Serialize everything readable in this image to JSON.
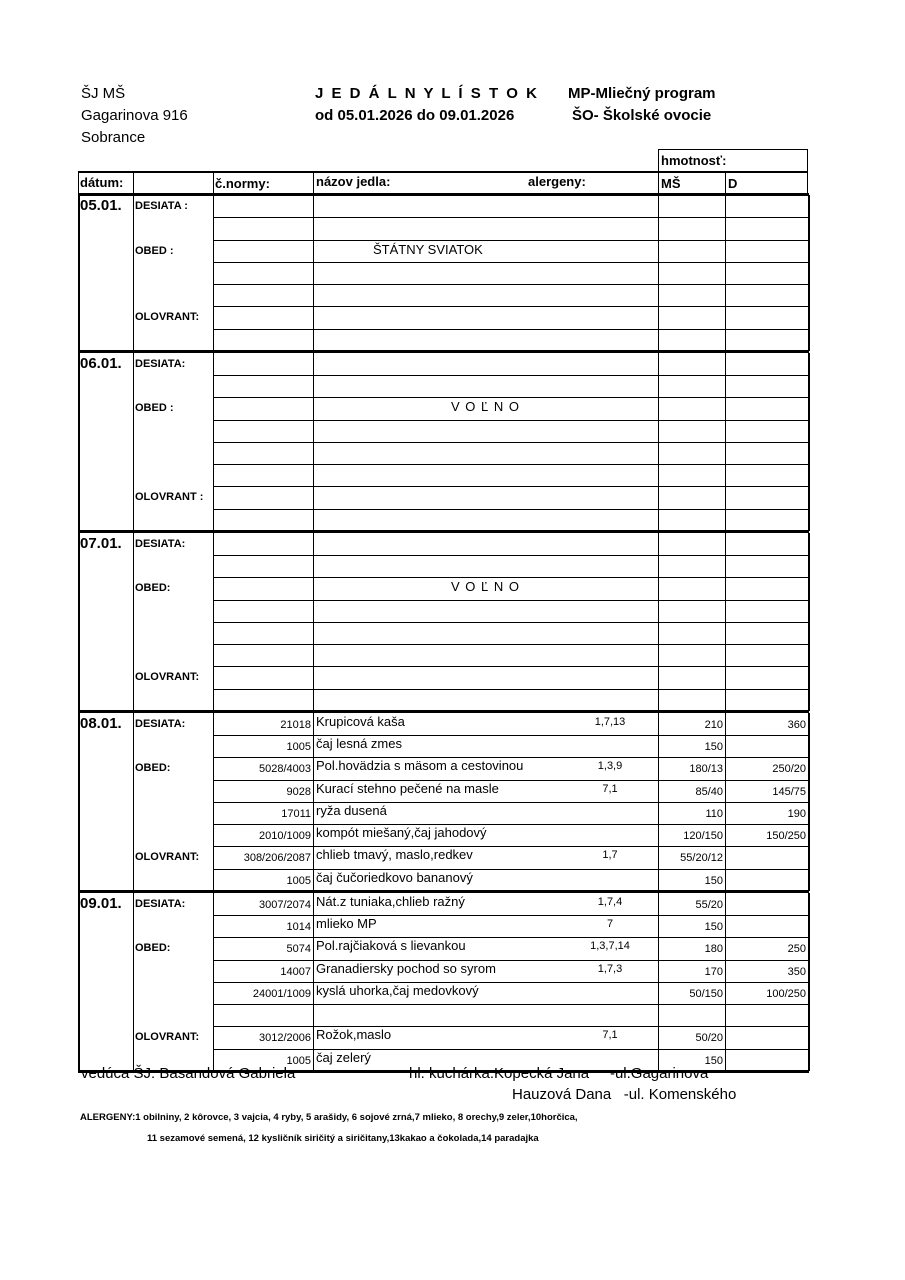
{
  "header": {
    "org": [
      "ŠJ MŠ",
      "Gagarinova 916",
      "Sobrance"
    ],
    "title": "J E D Á L N Y   L Í S T O K",
    "period": "od 05.01.2026 do 09.01.2026",
    "programs": [
      "MP-Mliečný program",
      "ŠO- Školské ovocie"
    ]
  },
  "columns": {
    "weight_group": "hmotnosť:",
    "date": "dátum:",
    "norm": "č.normy:",
    "name": "názov jedla:",
    "allergens": "alergeny:",
    "ms": "MŠ",
    "d": "D"
  },
  "days": [
    {
      "date": "05.01.",
      "rows": [
        {
          "meal": "DESIATA :"
        },
        {},
        {
          "meal": "OBED :",
          "note": "ŠTÁTNY SVIATOK"
        },
        {},
        {},
        {
          "meal": "OLOVRANT:"
        },
        {}
      ]
    },
    {
      "date": "06.01.",
      "rows": [
        {
          "meal": "DESIATA:"
        },
        {},
        {
          "meal": "OBED :",
          "note": "V O Ľ N O"
        },
        {},
        {},
        {},
        {
          "meal": "OLOVRANT :"
        },
        {}
      ]
    },
    {
      "date": "07.01.",
      "rows": [
        {
          "meal": "DESIATA:"
        },
        {},
        {
          "meal": "OBED:",
          "note": "V O Ľ N O"
        },
        {},
        {},
        {},
        {
          "meal": "OLOVRANT:"
        },
        {}
      ]
    },
    {
      "date": "08.01.",
      "rows": [
        {
          "meal": "DESIATA:",
          "norm": "21018",
          "name": "Krupicová kaša",
          "allergens": "1,7,13",
          "ms": "210",
          "d": "360"
        },
        {
          "norm": "1005",
          "name": "čaj lesná zmes",
          "ms": "150"
        },
        {
          "meal": "OBED:",
          "norm": "5028/4003",
          "name": "Pol.hovädzia s mäsom a cestovinou",
          "allergens": "1,3,9",
          "ms": "180/13",
          "d": "250/20"
        },
        {
          "norm": "9028",
          "name": "Kurací stehno pečené na masle",
          "allergens": "7,1",
          "ms": "85/40",
          "d": "145/75"
        },
        {
          "norm": "17011",
          "name": "ryža dusená",
          "ms": "110",
          "d": "190"
        },
        {
          "norm": "2010/1009",
          "name": "kompót miešaný,čaj jahodový",
          "ms": "120/150",
          "d": "150/250"
        },
        {
          "meal": "OLOVRANT:",
          "norm": "308/206/2087",
          "name": "chlieb tmavý, maslo,redkev",
          "allergens": "1,7",
          "ms": "55/20/12"
        },
        {
          "norm": "1005",
          "name": "čaj čučoriedkovo bananový",
          "ms": "150"
        }
      ]
    },
    {
      "date": "09.01.",
      "rows": [
        {
          "meal": "DESIATA:",
          "norm": "3007/2074",
          "name": "Nát.z tuniaka,chlieb ražný",
          "allergens": "1,7,4",
          "ms": "55/20"
        },
        {
          "norm": "1014",
          "name": "mlieko MP",
          "allergens": "7",
          "ms": "150"
        },
        {
          "meal": "OBED:",
          "norm": "5074",
          "name": "Pol.rajčiaková s lievankou",
          "allergens": "1,3,7,14",
          "ms": "180",
          "d": "250"
        },
        {
          "norm": "14007",
          "name": "Granadiersky pochod so syrom",
          "allergens": "1,7,3",
          "ms": "170",
          "d": "350"
        },
        {
          "norm": "24001/1009",
          "name": "kyslá uhorka,čaj medovkový",
          "ms": "50/150",
          "d": "100/250"
        },
        {},
        {
          "meal": "OLOVRANT:",
          "norm": "3012/2006",
          "name": "Rožok,maslo",
          "allergens": "7,1",
          "ms": "50/20"
        },
        {
          "norm": "1005",
          "name": "čaj zelerý",
          "ms": "150"
        }
      ]
    }
  ],
  "footer": {
    "manager": "vedúca ŠJ:  Basandová Gabriela",
    "cook1": "hl. kuchárka:Kopecká Jana     -ul.Gagarinova",
    "cook2": "Hauzová Dana   -ul. Komenského",
    "allergens_line1": "ALERGENY:1 obilniny, 2 kôrovce, 3 vajcia, 4 ryby, 5 arašidy, 6 sojové zrná,7 mlieko, 8 orechy,9 zeler,10horčica,",
    "allergens_line2": "11 sezamové semená, 12 kysličník siričitý a siričitany,13kakao a čokolada,14 paradajka"
  }
}
